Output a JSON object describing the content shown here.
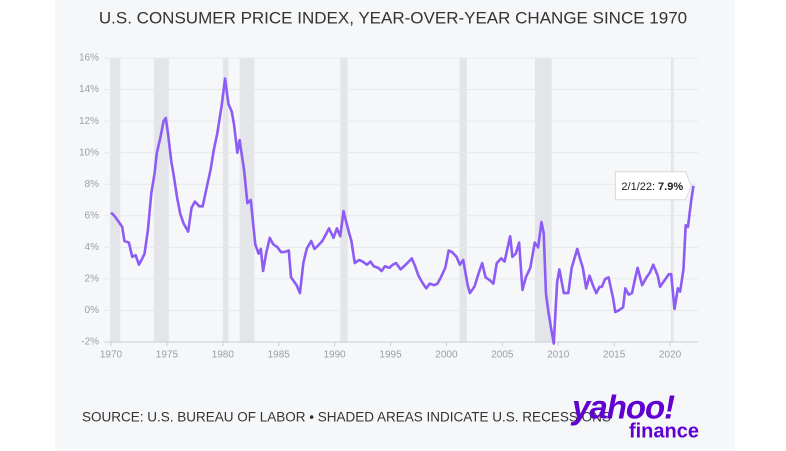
{
  "chart_data": {
    "type": "line",
    "title": "U.S. CONSUMER PRICE INDEX, YEAR-OVER-YEAR CHANGE SINCE 1970",
    "source": "SOURCE: U.S. BUREAU OF LABOR • SHADED AREAS INDICATE U.S. RECESSIONS",
    "logo": {
      "top": "yahoo!",
      "bottom": "finance"
    },
    "annotation": {
      "date": "2/1/22:",
      "value": "7.9%"
    },
    "xlim": [
      1969.4,
      2022.5
    ],
    "xticks": [
      1970,
      1975,
      1980,
      1985,
      1990,
      1995,
      2000,
      2005,
      2010,
      2015,
      2020
    ],
    "ylim": [
      -2,
      16
    ],
    "yticks": [
      {
        "value": -2,
        "label": "-2%"
      },
      {
        "value": 0,
        "label": "0%"
      },
      {
        "value": 2,
        "label": "2%"
      },
      {
        "value": 4,
        "label": "4%"
      },
      {
        "value": 6,
        "label": "6%"
      },
      {
        "value": 8,
        "label": "8%"
      },
      {
        "value": 10,
        "label": "10%"
      },
      {
        "value": 12,
        "label": "12%"
      },
      {
        "value": 14,
        "label": "14%"
      },
      {
        "value": 16,
        "label": "16%"
      }
    ],
    "grid": true,
    "recession_color": "#e3e5e9",
    "recessions": [
      [
        1969.92,
        1970.83
      ],
      [
        1973.83,
        1975.17
      ],
      [
        1980.0,
        1980.5
      ],
      [
        1981.5,
        1982.83
      ],
      [
        1990.5,
        1991.17
      ],
      [
        2001.17,
        2001.83
      ],
      [
        2007.92,
        2009.42
      ],
      [
        2020.08,
        2020.33
      ]
    ],
    "series": [
      {
        "color": "#8c5cf4",
        "x": [
          1970.0,
          1970.3,
          1970.6,
          1971.0,
          1971.2,
          1971.6,
          1971.9,
          1972.2,
          1972.5,
          1972.8,
          1973.0,
          1973.3,
          1973.6,
          1973.9,
          1974.1,
          1974.4,
          1974.7,
          1974.9,
          1975.1,
          1975.4,
          1975.6,
          1975.9,
          1976.2,
          1976.5,
          1976.9,
          1977.2,
          1977.5,
          1977.9,
          1978.2,
          1978.5,
          1978.9,
          1979.2,
          1979.5,
          1979.9,
          1980.2,
          1980.5,
          1980.8,
          1981.0,
          1981.3,
          1981.5,
          1981.9,
          1982.2,
          1982.5,
          1982.9,
          1983.2,
          1983.4,
          1983.6,
          1983.9,
          1984.2,
          1984.5,
          1984.9,
          1985.2,
          1985.5,
          1985.9,
          1986.1,
          1986.4,
          1986.6,
          1986.9,
          1987.2,
          1987.5,
          1987.9,
          1988.2,
          1988.5,
          1988.9,
          1989.2,
          1989.5,
          1989.9,
          1990.2,
          1990.5,
          1990.8,
          1991.0,
          1991.3,
          1991.5,
          1991.8,
          1992.2,
          1992.5,
          1992.9,
          1993.2,
          1993.5,
          1993.9,
          1994.2,
          1994.5,
          1994.9,
          1995.2,
          1995.5,
          1995.9,
          1996.2,
          1996.5,
          1996.9,
          1997.2,
          1997.5,
          1997.9,
          1998.2,
          1998.5,
          1998.9,
          1999.2,
          1999.5,
          1999.9,
          2000.2,
          2000.5,
          2000.9,
          2001.2,
          2001.5,
          2001.9,
          2002.1,
          2002.5,
          2002.9,
          2003.2,
          2003.5,
          2003.9,
          2004.2,
          2004.5,
          2004.9,
          2005.2,
          2005.7,
          2005.9,
          2006.2,
          2006.5,
          2006.8,
          2007.1,
          2007.5,
          2007.9,
          2008.2,
          2008.5,
          2008.7,
          2008.9,
          2009.1,
          2009.4,
          2009.6,
          2009.9,
          2010.1,
          2010.5,
          2010.9,
          2011.2,
          2011.7,
          2011.9,
          2012.2,
          2012.5,
          2012.8,
          2013.1,
          2013.4,
          2013.7,
          2013.9,
          2014.2,
          2014.5,
          2014.9,
          2015.1,
          2015.4,
          2015.8,
          2016.0,
          2016.3,
          2016.6,
          2016.9,
          2017.1,
          2017.5,
          2017.9,
          2018.2,
          2018.5,
          2018.9,
          2019.1,
          2019.4,
          2019.9,
          2020.1,
          2020.4,
          2020.7,
          2020.9,
          2021.2,
          2021.4,
          2021.6,
          2021.9,
          2022.09
        ],
        "values": [
          6.2,
          6.0,
          5.7,
          5.3,
          4.4,
          4.3,
          3.4,
          3.5,
          2.9,
          3.3,
          3.6,
          5.1,
          7.4,
          8.7,
          10.0,
          10.9,
          12.0,
          12.2,
          11.2,
          9.4,
          8.6,
          7.2,
          6.1,
          5.5,
          5.0,
          6.5,
          6.9,
          6.6,
          6.6,
          7.6,
          8.9,
          10.2,
          11.2,
          13.0,
          14.7,
          13.1,
          12.6,
          11.8,
          10.0,
          10.8,
          8.9,
          6.8,
          7.0,
          4.2,
          3.6,
          3.9,
          2.5,
          3.7,
          4.6,
          4.2,
          4.0,
          3.7,
          3.7,
          3.8,
          2.1,
          1.8,
          1.6,
          1.1,
          3.0,
          3.9,
          4.4,
          3.9,
          4.1,
          4.4,
          4.8,
          5.2,
          4.6,
          5.2,
          4.7,
          6.3,
          5.7,
          4.9,
          4.4,
          3.0,
          3.2,
          3.1,
          2.9,
          3.1,
          2.8,
          2.7,
          2.5,
          2.8,
          2.7,
          2.9,
          3.0,
          2.6,
          2.8,
          3.0,
          3.3,
          2.8,
          2.2,
          1.7,
          1.4,
          1.7,
          1.6,
          1.7,
          2.1,
          2.7,
          3.8,
          3.7,
          3.4,
          2.9,
          3.2,
          1.6,
          1.1,
          1.5,
          2.4,
          3.0,
          2.1,
          1.9,
          1.7,
          3.0,
          3.3,
          3.1,
          4.7,
          3.4,
          3.6,
          4.3,
          1.3,
          2.1,
          2.7,
          4.3,
          4.0,
          5.6,
          4.9,
          1.1,
          0.0,
          -1.3,
          -2.1,
          1.8,
          2.6,
          1.1,
          1.1,
          2.7,
          3.9,
          3.4,
          2.7,
          1.4,
          2.2,
          1.6,
          1.1,
          1.5,
          1.5,
          2.0,
          2.1,
          0.8,
          -0.1,
          0.0,
          0.2,
          1.4,
          1.0,
          1.1,
          2.1,
          2.7,
          1.6,
          2.1,
          2.4,
          2.9,
          2.2,
          1.5,
          1.8,
          2.3,
          2.3,
          0.1,
          1.4,
          1.2,
          2.6,
          5.4,
          5.3,
          7.0,
          7.9
        ]
      }
    ]
  }
}
